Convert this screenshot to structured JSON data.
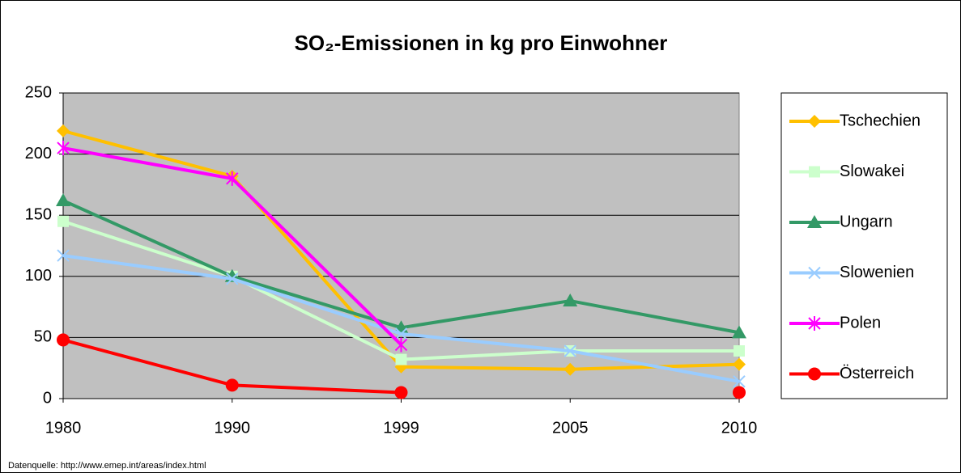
{
  "chart_data": {
    "type": "line",
    "title": "SO₂-Emissionen in kg pro Einwohner",
    "source": "Datenquelle: http://www.emep.int/areas/index.html",
    "categories": [
      "1980",
      "1990",
      "1999",
      "2005",
      "2010"
    ],
    "ylim": [
      0,
      250
    ],
    "yticks": [
      0,
      50,
      100,
      150,
      200,
      250
    ],
    "grid": true,
    "legend": "right",
    "series": [
      {
        "name": "Tschechien",
        "color": "#FFC000",
        "marker": "diamond",
        "values": [
          219,
          182,
          26,
          24,
          28
        ]
      },
      {
        "name": "Slowakei",
        "color": "#CCFFCC",
        "marker": "square",
        "values": [
          145,
          100,
          32,
          39,
          39
        ]
      },
      {
        "name": "Ungarn",
        "color": "#339966",
        "marker": "triangle",
        "values": [
          162,
          100,
          58,
          80,
          54
        ]
      },
      {
        "name": "Slowenien",
        "color": "#99CCFF",
        "marker": "x",
        "values": [
          117,
          98,
          53,
          39,
          14
        ]
      },
      {
        "name": "Polen",
        "color": "#FF00FF",
        "marker": "star",
        "values": [
          205,
          180,
          44,
          null,
          null
        ]
      },
      {
        "name": "Österreich",
        "color": "#FF0000",
        "marker": "circle",
        "values": [
          48,
          11,
          5,
          null,
          5
        ]
      }
    ]
  }
}
